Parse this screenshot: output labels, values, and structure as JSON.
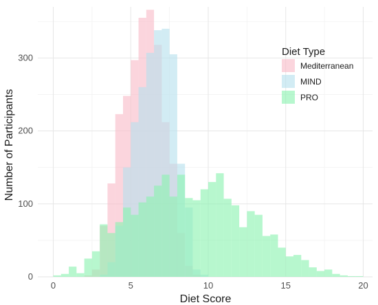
{
  "chart_data": {
    "type": "histogram",
    "xlabel": "Diet Score",
    "ylabel": "Number of Participants",
    "xlim": [
      -1,
      20.6
    ],
    "ylim": [
      0,
      370
    ],
    "x_ticks": [
      0,
      5,
      10,
      15,
      20
    ],
    "y_ticks": [
      0,
      100,
      200,
      300
    ],
    "bin_width": 0.5,
    "grid": true,
    "legend": {
      "title": "Diet Type",
      "position": "right-top"
    },
    "series": [
      {
        "name": "Mediterranean",
        "color": "#f8bcc8",
        "bins": [
          [
            2,
            2
          ],
          [
            2.5,
            10
          ],
          [
            3,
            70
          ],
          [
            3.5,
            128
          ],
          [
            4,
            223
          ],
          [
            4.5,
            248
          ],
          [
            5,
            297
          ],
          [
            5.5,
            355
          ],
          [
            6,
            366
          ],
          [
            6.5,
            318
          ],
          [
            7,
            212
          ],
          [
            7.5,
            155
          ],
          [
            8,
            60
          ],
          [
            8.5,
            15
          ],
          [
            9,
            3
          ]
        ]
      },
      {
        "name": "MIND",
        "color": "#b6e1ee",
        "bins": [
          [
            3,
            3
          ],
          [
            3.5,
            20
          ],
          [
            4,
            70
          ],
          [
            4.5,
            150
          ],
          [
            5,
            212
          ],
          [
            5.5,
            260
          ],
          [
            6,
            307
          ],
          [
            6.5,
            338
          ],
          [
            7,
            340
          ],
          [
            7.5,
            305
          ],
          [
            8,
            155
          ],
          [
            8.5,
            95
          ],
          [
            9,
            10
          ],
          [
            9.5,
            3
          ]
        ]
      },
      {
        "name": "PRO",
        "color": "#8af2b0",
        "bins": [
          [
            0,
            2
          ],
          [
            0.5,
            4
          ],
          [
            1,
            14
          ],
          [
            1.5,
            5
          ],
          [
            2,
            25
          ],
          [
            2.5,
            35
          ],
          [
            3,
            72
          ],
          [
            3.5,
            60
          ],
          [
            4,
            75
          ],
          [
            4.5,
            95
          ],
          [
            5,
            85
          ],
          [
            5.5,
            102
          ],
          [
            6,
            110
          ],
          [
            6.5,
            125
          ],
          [
            7,
            140
          ],
          [
            7.5,
            110
          ],
          [
            8,
            140
          ],
          [
            8.5,
            108
          ],
          [
            9,
            105
          ],
          [
            9.5,
            120
          ],
          [
            10,
            130
          ],
          [
            10.5,
            142
          ],
          [
            11,
            107
          ],
          [
            11.5,
            98
          ],
          [
            12,
            68
          ],
          [
            12.5,
            90
          ],
          [
            13,
            85
          ],
          [
            13.5,
            56
          ],
          [
            14,
            58
          ],
          [
            14.5,
            40
          ],
          [
            15,
            28
          ],
          [
            15.5,
            30
          ],
          [
            16,
            23
          ],
          [
            16.5,
            13
          ],
          [
            17,
            8
          ],
          [
            17.5,
            10
          ],
          [
            18,
            4
          ],
          [
            18.5,
            2
          ],
          [
            19,
            1
          ],
          [
            19.5,
            1
          ]
        ]
      }
    ]
  }
}
